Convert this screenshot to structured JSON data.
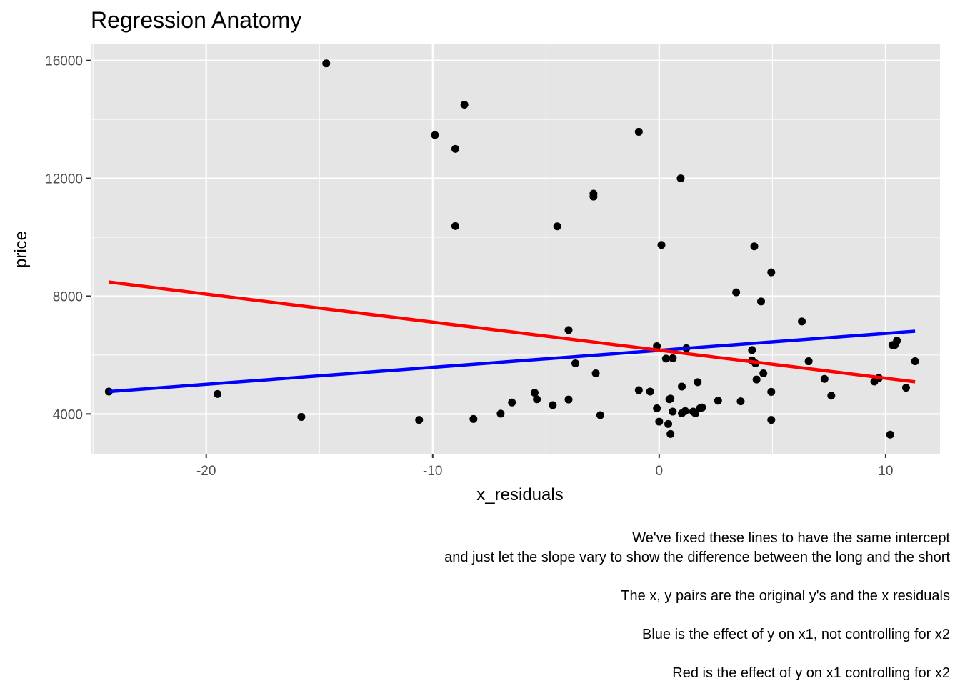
{
  "chart_data": {
    "type": "scatter",
    "title": "Regression Anatomy",
    "xlabel": "x_residuals",
    "ylabel": "price",
    "xlim": [
      -25.1,
      12.4
    ],
    "ylim": [
      2650,
      16550
    ],
    "x_ticks": [
      -20,
      -10,
      0,
      10
    ],
    "y_ticks": [
      4000,
      8000,
      12000,
      16000
    ],
    "grid": true,
    "panel_background": "#e5e5e5",
    "grid_color": "#ffffff",
    "points": [
      {
        "x": -24.3,
        "y": 4760
      },
      {
        "x": -19.5,
        "y": 4680
      },
      {
        "x": -15.8,
        "y": 3900
      },
      {
        "x": -14.7,
        "y": 15900
      },
      {
        "x": -10.6,
        "y": 3800
      },
      {
        "x": -9.9,
        "y": 13470
      },
      {
        "x": -9.0,
        "y": 13000
      },
      {
        "x": -9.0,
        "y": 10380
      },
      {
        "x": -8.6,
        "y": 14500
      },
      {
        "x": -8.2,
        "y": 3830
      },
      {
        "x": -7.0,
        "y": 4010
      },
      {
        "x": -6.5,
        "y": 4390
      },
      {
        "x": -5.5,
        "y": 4720
      },
      {
        "x": -5.4,
        "y": 4500
      },
      {
        "x": -4.7,
        "y": 4300
      },
      {
        "x": -4.5,
        "y": 10370
      },
      {
        "x": -4.0,
        "y": 6850
      },
      {
        "x": -4.0,
        "y": 4490
      },
      {
        "x": -3.7,
        "y": 5720
      },
      {
        "x": -2.9,
        "y": 11380
      },
      {
        "x": -2.9,
        "y": 11480
      },
      {
        "x": -2.8,
        "y": 5380
      },
      {
        "x": -2.6,
        "y": 3960
      },
      {
        "x": -0.9,
        "y": 13580
      },
      {
        "x": -0.9,
        "y": 4810
      },
      {
        "x": -0.4,
        "y": 4760
      },
      {
        "x": -0.1,
        "y": 6300
      },
      {
        "x": -0.1,
        "y": 4190
      },
      {
        "x": 0.0,
        "y": 3740
      },
      {
        "x": 0.1,
        "y": 9740
      },
      {
        "x": 0.3,
        "y": 5880
      },
      {
        "x": 0.4,
        "y": 3660
      },
      {
        "x": 0.45,
        "y": 4500
      },
      {
        "x": 0.5,
        "y": 3320
      },
      {
        "x": 0.5,
        "y": 4520
      },
      {
        "x": 0.6,
        "y": 5890
      },
      {
        "x": 0.6,
        "y": 4080
      },
      {
        "x": 0.95,
        "y": 12000
      },
      {
        "x": 1.0,
        "y": 4930
      },
      {
        "x": 1.0,
        "y": 4020
      },
      {
        "x": 1.15,
        "y": 4100
      },
      {
        "x": 1.2,
        "y": 6230
      },
      {
        "x": 1.5,
        "y": 4080
      },
      {
        "x": 1.6,
        "y": 4020
      },
      {
        "x": 1.7,
        "y": 5080
      },
      {
        "x": 1.8,
        "y": 4190
      },
      {
        "x": 1.9,
        "y": 4220
      },
      {
        "x": 2.6,
        "y": 4450
      },
      {
        "x": 3.4,
        "y": 8130
      },
      {
        "x": 3.6,
        "y": 4430
      },
      {
        "x": 4.1,
        "y": 6170
      },
      {
        "x": 4.1,
        "y": 5820
      },
      {
        "x": 4.2,
        "y": 9690
      },
      {
        "x": 4.25,
        "y": 5720
      },
      {
        "x": 4.3,
        "y": 5170
      },
      {
        "x": 4.5,
        "y": 7820
      },
      {
        "x": 4.6,
        "y": 5380
      },
      {
        "x": 4.95,
        "y": 8810
      },
      {
        "x": 4.95,
        "y": 4750
      },
      {
        "x": 4.95,
        "y": 3800
      },
      {
        "x": 6.3,
        "y": 7140
      },
      {
        "x": 6.6,
        "y": 5790
      },
      {
        "x": 7.3,
        "y": 5190
      },
      {
        "x": 7.6,
        "y": 4620
      },
      {
        "x": 9.5,
        "y": 5100
      },
      {
        "x": 9.7,
        "y": 5220
      },
      {
        "x": 10.2,
        "y": 3300
      },
      {
        "x": 10.3,
        "y": 6340
      },
      {
        "x": 10.4,
        "y": 6340
      },
      {
        "x": 10.5,
        "y": 6490
      },
      {
        "x": 10.9,
        "y": 4890
      },
      {
        "x": 11.3,
        "y": 5790
      }
    ],
    "lines": [
      {
        "color": "#0000ff",
        "x": [
          -24.3,
          11.3
        ],
        "y": [
          4760,
          6810
        ]
      },
      {
        "color": "#ff0000",
        "x": [
          -24.3,
          11.3
        ],
        "y": [
          8480,
          5090
        ]
      }
    ]
  },
  "caption": [
    "We've fixed these lines to have the same intercept",
    "and just let the slope vary to show the difference between the long and the short",
    "",
    "The x, y pairs are the original y's and the x residuals",
    "",
    "Blue is the effect of y on x1, not controlling for x2",
    "",
    "Red is the effect of y on x1 controlling for x2"
  ]
}
